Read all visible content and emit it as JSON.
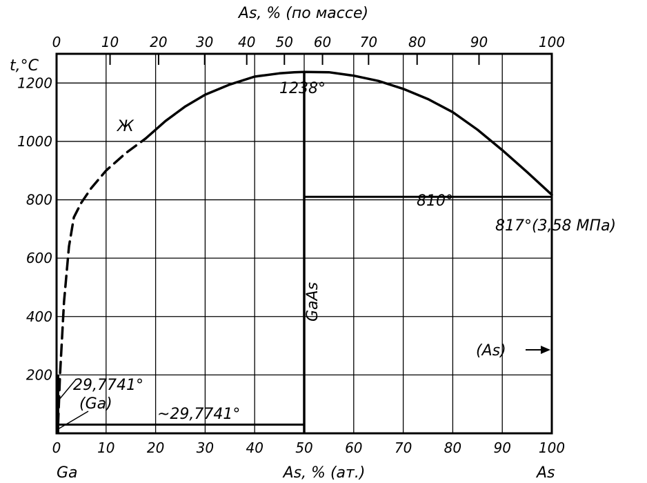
{
  "chart_data": {
    "type": "line",
    "title": "",
    "xlabel": "As, % (ат.)",
    "xlabel_top": "As, % (по массе)",
    "ylabel": "t,°C",
    "xlim": [
      0,
      100
    ],
    "ylim": [
      0,
      1300
    ],
    "x_ticks": [
      0,
      10,
      20,
      30,
      40,
      50,
      60,
      70,
      80,
      90,
      100
    ],
    "x_tick_labels": [
      "0",
      "10",
      "20",
      "30",
      "40",
      "50",
      "60",
      "70",
      "80",
      "90",
      "100"
    ],
    "x_ticks_top": [
      0,
      10,
      20,
      30,
      40,
      50,
      60,
      70,
      80,
      90,
      100
    ],
    "x_ticks_top_positions_at": [
      0,
      10.8,
      20.6,
      29.9,
      38.4,
      46.0,
      53.7,
      63.0,
      72.8,
      85.3,
      100
    ],
    "y_ticks": [
      200,
      400,
      600,
      800,
      1000,
      1200
    ],
    "y_tick_labels": [
      "200",
      "400",
      "600",
      "800",
      "1000",
      "1200"
    ],
    "grid": true,
    "element_left": "Ga",
    "element_right": "As",
    "series": [
      {
        "style": "dashed",
        "x": [
          0.3,
          0.7,
          1.5,
          2.5,
          3.5,
          5.0,
          7.0,
          10.0,
          14.0,
          18.0
        ],
        "y": [
          29.7741,
          200,
          450,
          640,
          740,
          790,
          840,
          900,
          960,
          1010
        ]
      },
      {
        "style": "solid",
        "x": [
          18.0,
          22,
          26,
          30,
          35,
          40,
          45,
          48,
          50,
          55,
          60,
          65,
          70,
          75,
          80,
          85,
          90,
          95,
          100
        ],
        "y": [
          1010,
          1070,
          1120,
          1160,
          1195,
          1222,
          1233,
          1237,
          1238,
          1237,
          1225,
          1207,
          1180,
          1145,
          1100,
          1040,
          970,
          895,
          817
        ]
      }
    ],
    "horizontal_lines": [
      {
        "x_from": 0,
        "x_to": 50,
        "y": 29.7741
      },
      {
        "x_from": 50,
        "x_to": 100,
        "y": 810
      },
      {
        "x_from": 50,
        "x_to": 100,
        "y": 0
      }
    ],
    "vertical_lines": [
      {
        "x": 50,
        "y_from": 0,
        "y_to": 1238
      },
      {
        "x": 0.3,
        "y_from": 0,
        "y_to": 200
      }
    ],
    "annotations": [
      {
        "text": "1238°",
        "x": 50,
        "y": 1238
      },
      {
        "text": "Ж",
        "x": 16,
        "y": 1150
      },
      {
        "text": "810°",
        "x": 78,
        "y": 810
      },
      {
        "text": "817°(3,58 МПа)",
        "x": 100,
        "y": 817
      },
      {
        "text": "GaAs",
        "x": 50,
        "y": 440
      },
      {
        "text": "(As)",
        "x": 85,
        "y": 300
      },
      {
        "text": "29,7741°",
        "x": 2,
        "y": 185
      },
      {
        "text": "(Ga)",
        "x": 5,
        "y": 110
      },
      {
        "text": "~29,7741°",
        "x": 25,
        "y": 55
      }
    ]
  }
}
